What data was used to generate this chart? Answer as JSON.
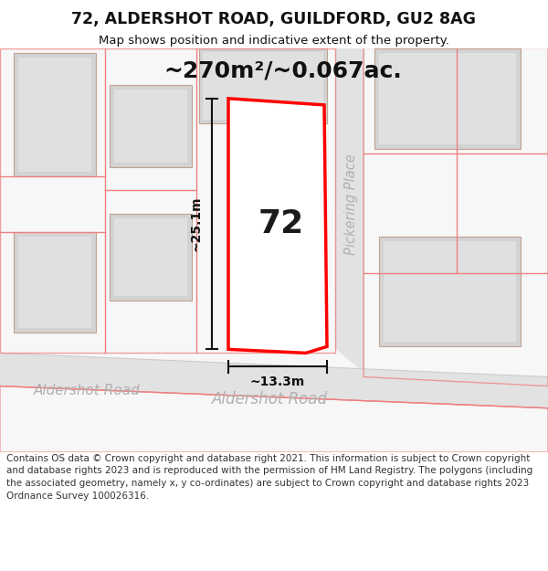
{
  "title": "72, ALDERSHOT ROAD, GUILDFORD, GU2 8AG",
  "subtitle": "Map shows position and indicative extent of the property.",
  "footer": "Contains OS data © Crown copyright and database right 2021. This information is subject to Crown copyright and database rights 2023 and is reproduced with the permission of HM Land Registry. The polygons (including the associated geometry, namely x, y co-ordinates) are subject to Crown copyright and database rights 2023 Ordnance Survey 100026316.",
  "area_text": "~270m²/~0.067ac.",
  "dim_width": "~13.3m",
  "dim_height": "~25.1m",
  "label_72": "72",
  "street_left": "Aldershot Road",
  "street_right": "Aldershot Road",
  "street_vertical": "Pickering Place",
  "bg_color": "#ffffff",
  "map_bg": "#f7f7f7",
  "road_fill": "#e2e2e2",
  "bld_fill": "#d3d3d3",
  "bld_edge": "#c0a090",
  "bld_inner": "#e0e0e0",
  "red_prop": "#ff0000",
  "red_line": "#f08080",
  "dim_col": "#111111",
  "road_lbl": "#b0b0b0",
  "title_col": "#111111",
  "figsize": [
    6.0,
    6.25
  ],
  "dpi": 100
}
